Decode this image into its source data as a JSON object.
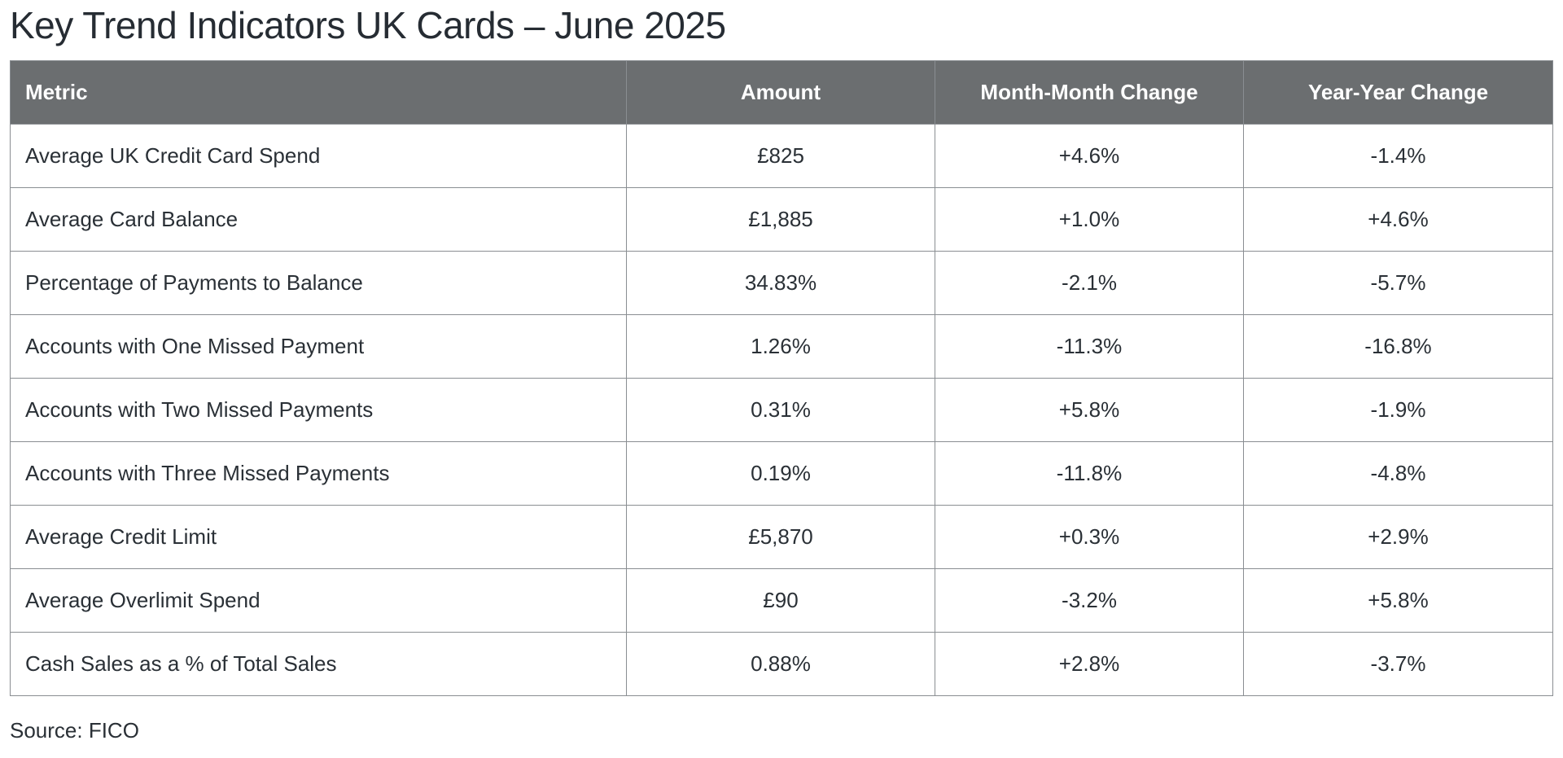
{
  "title": "Key Trend Indicators UK Cards – June 2025",
  "table": {
    "headers": {
      "metric": "Metric",
      "amount": "Amount",
      "mom": "Month-Month Change",
      "yoy": "Year-Year Change"
    },
    "rows": [
      {
        "metric": "Average UK Credit Card Spend",
        "amount": "£825",
        "mom": "+4.6%",
        "yoy": "-1.4%"
      },
      {
        "metric": "Average Card Balance",
        "amount": "£1,885",
        "mom": "+1.0%",
        "yoy": "+4.6%"
      },
      {
        "metric": "Percentage of Payments to Balance",
        "amount": "34.83%",
        "mom": "-2.1%",
        "yoy": "-5.7%"
      },
      {
        "metric": "Accounts with One Missed Payment",
        "amount": "1.26%",
        "mom": "-11.3%",
        "yoy": "-16.8%"
      },
      {
        "metric": "Accounts with Two Missed Payments",
        "amount": "0.31%",
        "mom": "+5.8%",
        "yoy": "-1.9%"
      },
      {
        "metric": "Accounts with Three Missed Payments",
        "amount": "0.19%",
        "mom": "-11.8%",
        "yoy": "-4.8%"
      },
      {
        "metric": "Average Credit Limit",
        "amount": "£5,870",
        "mom": "+0.3%",
        "yoy": "+2.9%"
      },
      {
        "metric": "Average Overlimit Spend",
        "amount": "£90",
        "mom": "-3.2%",
        "yoy": "+5.8%"
      },
      {
        "metric": "Cash Sales as a % of Total Sales",
        "amount": "0.88%",
        "mom": "+2.8%",
        "yoy": "-3.7%"
      }
    ]
  },
  "source": "Source: FICO",
  "colors": {
    "header_bg": "#6b6e70",
    "header_text": "#ffffff",
    "border": "#8a8e92",
    "body_text": "#2a3036"
  }
}
